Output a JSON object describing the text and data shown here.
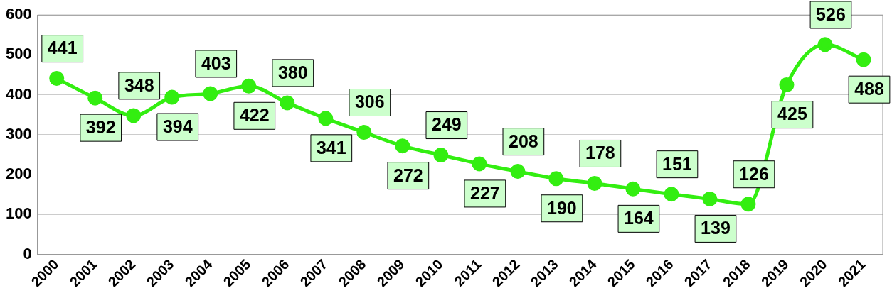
{
  "chart_data": {
    "type": "line",
    "categories": [
      "2000",
      "2001",
      "2002",
      "2003",
      "2004",
      "2005",
      "2006",
      "2007",
      "2008",
      "2009",
      "2010",
      "2011",
      "2012",
      "2013",
      "2014",
      "2015",
      "2016",
      "2017",
      "2018",
      "2019",
      "2020",
      "2021"
    ],
    "series": [
      {
        "color": "#33ee11",
        "values": [
          441,
          392,
          348,
          394,
          403,
          422,
          380,
          341,
          306,
          272,
          249,
          227,
          208,
          190,
          178,
          164,
          151,
          139,
          126,
          425,
          526,
          488
        ]
      }
    ],
    "ylim": [
      0,
      600
    ],
    "yticks": [
      0,
      100,
      200,
      300,
      400,
      500,
      600
    ],
    "grid": "y",
    "legend": false,
    "marker": "circle",
    "line_style": "solid",
    "data_labels": true
  }
}
